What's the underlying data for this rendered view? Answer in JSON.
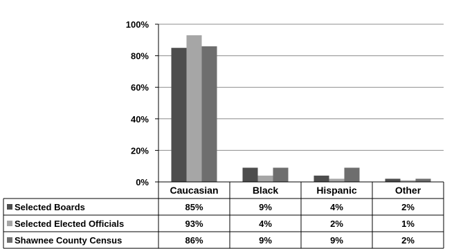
{
  "chart_data": {
    "type": "bar",
    "categories": [
      "Caucasian",
      "Black",
      "Hispanic",
      "Other"
    ],
    "series": [
      {
        "name": "Selected Boards",
        "values": [
          85,
          9,
          4,
          2
        ],
        "labels": [
          "85%",
          "9%",
          "4%",
          "2%"
        ],
        "color": "#4d4d4d"
      },
      {
        "name": "Selected Elected Officials",
        "values": [
          93,
          4,
          2,
          1
        ],
        "labels": [
          "93%",
          "4%",
          "2%",
          "1%"
        ],
        "color": "#a6a6a6"
      },
      {
        "name": "Shawnee County Census",
        "values": [
          86,
          9,
          9,
          2
        ],
        "labels": [
          "86%",
          "9%",
          "9%",
          "2%"
        ],
        "color": "#6e6e6e"
      }
    ],
    "y_ticks": [
      "0%",
      "20%",
      "40%",
      "60%",
      "80%",
      "100%"
    ],
    "ylim": [
      0,
      100
    ],
    "grid": true,
    "legend": "data-table-left",
    "title": "",
    "xlabel": "",
    "ylabel": ""
  }
}
